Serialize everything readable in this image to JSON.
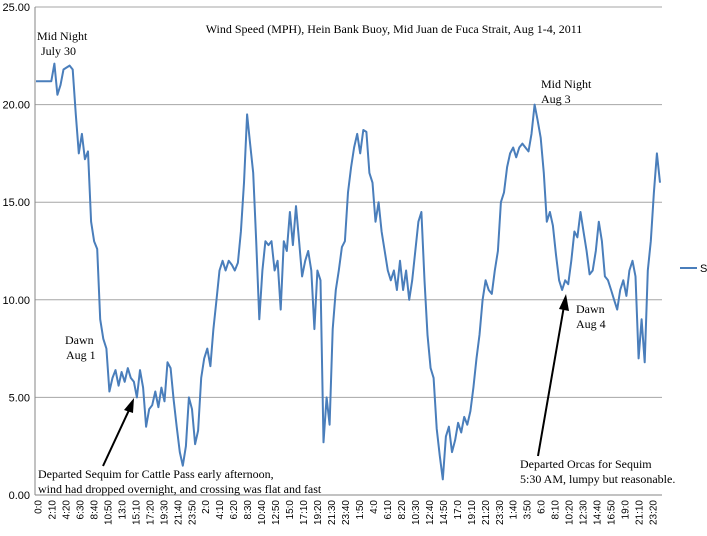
{
  "chart_data": {
    "type": "line",
    "title": "Wind Speed (MPH), Hein Bank Buoy, Mid Juan de Fuca Strait, Aug 1-4, 2011",
    "xlabel": "",
    "ylabel": "",
    "ylim": [
      0,
      25
    ],
    "yticks": [
      "0.00",
      "5.00",
      "10.00",
      "15.00",
      "20.00",
      "25.00"
    ],
    "xticks": [
      "0:0",
      "2:10",
      "4:20",
      "6:30",
      "8:40",
      "10:50",
      "13:0",
      "15:10",
      "17:20",
      "19:30",
      "21:40",
      "23:50",
      "2:0",
      "4:10",
      "6:20",
      "8:30",
      "10:40",
      "12:50",
      "15:0",
      "17:10",
      "19:20",
      "21:30",
      "23:40",
      "1:50",
      "4:0",
      "6:10",
      "8:20",
      "10:30",
      "12:40",
      "14:50",
      "17:0",
      "19:10",
      "21:20",
      "23:30",
      "1:40",
      "3:50",
      "6:0",
      "8:10",
      "10:20",
      "12:30",
      "14:40",
      "16:50",
      "19:0",
      "21:10",
      "23:20"
    ],
    "grid": true,
    "legend": "right",
    "series": [
      {
        "name": "S",
        "color": "#4a7ebb",
        "values": [
          21.2,
          21.2,
          21.2,
          21.2,
          21.2,
          21.2,
          22.1,
          20.5,
          21.0,
          21.8,
          21.9,
          22.0,
          21.8,
          19.5,
          17.5,
          18.5,
          17.2,
          17.6,
          14.0,
          13.0,
          12.6,
          9.0,
          8.0,
          7.5,
          5.3,
          6.0,
          6.4,
          5.6,
          6.3,
          5.8,
          6.5,
          6.0,
          5.8,
          5.0,
          6.4,
          5.5,
          3.5,
          4.4,
          4.6,
          5.3,
          4.5,
          5.5,
          4.8,
          6.8,
          6.5,
          4.9,
          3.5,
          2.2,
          1.5,
          2.5,
          5.0,
          4.4,
          2.6,
          3.3,
          6.0,
          7.0,
          7.5,
          6.6,
          8.5,
          10.0,
          11.5,
          12.0,
          11.5,
          12.0,
          11.8,
          11.5,
          11.9,
          13.5,
          16.0,
          19.5,
          18.0,
          16.5,
          13.0,
          9.0,
          11.5,
          13.0,
          12.8,
          13.0,
          11.5,
          12.0,
          9.5,
          13.0,
          12.5,
          14.5,
          12.8,
          14.8,
          13.0,
          11.2,
          12.0,
          12.5,
          11.5,
          8.5,
          11.5,
          11.0,
          2.7,
          5.0,
          3.6,
          8.5,
          10.5,
          11.5,
          12.7,
          13.0,
          15.5,
          16.8,
          17.8,
          18.5,
          17.5,
          18.7,
          18.6,
          16.5,
          16.0,
          14.0,
          15.0,
          13.5,
          12.5,
          11.5,
          11.0,
          11.5,
          10.5,
          12.0,
          10.5,
          11.5,
          10.0,
          11.0,
          12.5,
          14.0,
          14.5,
          11.0,
          8.2,
          6.5,
          6.0,
          3.4,
          2.0,
          0.8,
          3.0,
          3.5,
          2.2,
          2.8,
          3.7,
          3.2,
          4.0,
          3.6,
          4.3,
          5.5,
          7.0,
          8.2,
          10.0,
          11.0,
          10.5,
          10.3,
          11.5,
          12.5,
          15.0,
          15.5,
          16.8,
          17.5,
          17.8,
          17.3,
          17.8,
          18.0,
          17.8,
          17.6,
          18.5,
          20.0,
          19.2,
          18.3,
          16.5,
          14.0,
          14.5,
          13.8,
          12.3,
          11.0,
          10.5,
          11.0,
          10.8,
          12.0,
          13.5,
          13.2,
          14.5,
          13.5,
          12.5,
          11.3,
          11.5,
          12.5,
          14.0,
          13.0,
          11.2,
          11.0,
          10.5,
          10.0,
          9.5,
          10.5,
          11.0,
          10.2,
          11.5,
          12.0,
          11.2,
          7.0,
          9.0,
          6.8,
          11.5,
          13.0,
          15.5,
          17.5,
          16.0
        ]
      }
    ],
    "annotations": [
      [
        "Mid Night",
        "July 30"
      ],
      [
        "Mid Night",
        "Aug 3"
      ],
      [
        "Dawn",
        "Aug 1"
      ],
      [
        "Dawn",
        "Aug 4"
      ],
      [
        "Departed Sequim for Cattle Pass early afternoon,",
        "wind had dropped overnight, and crossing was flat and fast"
      ],
      [
        "Departed Orcas for Sequim",
        "5:30 AM, lumpy but reasonable."
      ]
    ]
  }
}
